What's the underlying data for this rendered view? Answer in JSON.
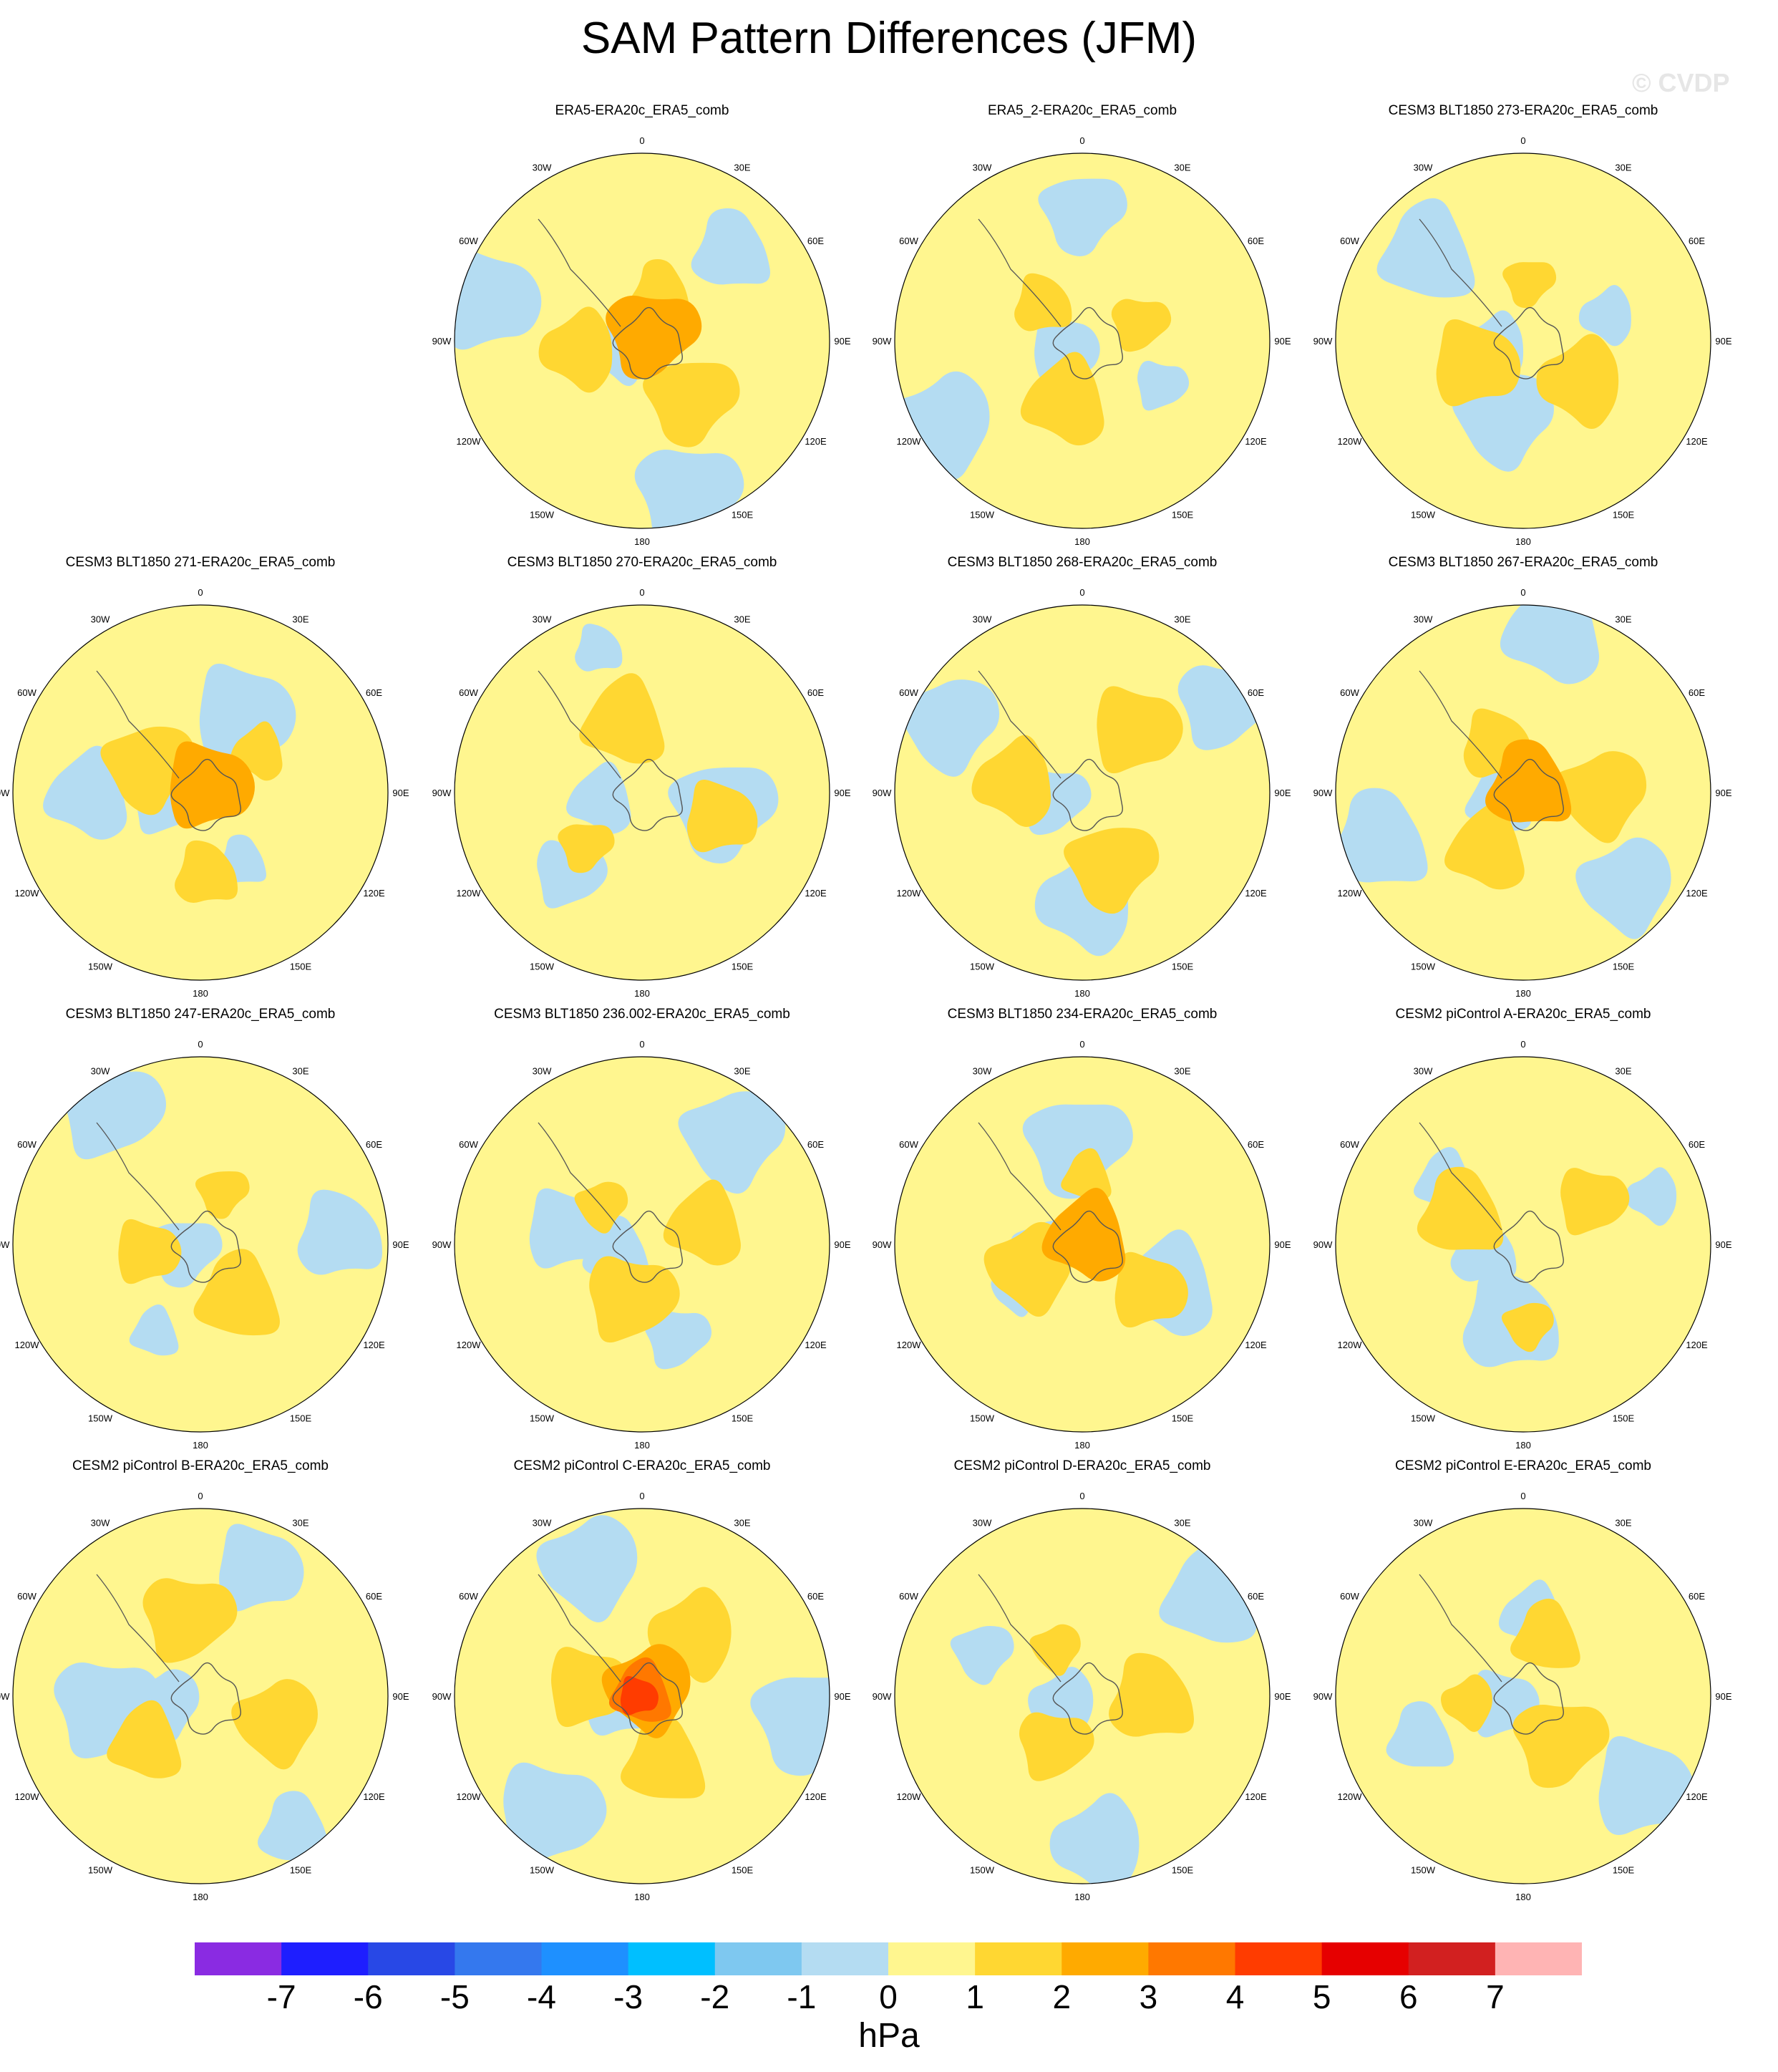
{
  "title": "SAM Pattern Differences (JFM)",
  "watermark": "© CVDP",
  "chart_data": {
    "type": "heatmap",
    "projection": "south-polar-stereographic",
    "panels": [
      {
        "title": "ERA5-ERA20c_ERA5_comb",
        "row": 0,
        "col": 1
      },
      {
        "title": "ERA5_2-ERA20c_ERA5_comb",
        "row": 0,
        "col": 2
      },
      {
        "title": "CESM3 BLT1850 273-ERA20c_ERA5_comb",
        "row": 0,
        "col": 3
      },
      {
        "title": "CESM3 BLT1850 271-ERA20c_ERA5_comb",
        "row": 1,
        "col": 0
      },
      {
        "title": "CESM3 BLT1850 270-ERA20c_ERA5_comb",
        "row": 1,
        "col": 1
      },
      {
        "title": "CESM3 BLT1850 268-ERA20c_ERA5_comb",
        "row": 1,
        "col": 2
      },
      {
        "title": "CESM3 BLT1850 267-ERA20c_ERA5_comb",
        "row": 1,
        "col": 3
      },
      {
        "title": "CESM3 BLT1850 247-ERA20c_ERA5_comb",
        "row": 2,
        "col": 0
      },
      {
        "title": "CESM3 BLT1850 236.002-ERA20c_ERA5_comb",
        "row": 2,
        "col": 1
      },
      {
        "title": "CESM3 BLT1850 234-ERA20c_ERA5_comb",
        "row": 2,
        "col": 2
      },
      {
        "title": "CESM2 piControl A-ERA20c_ERA5_comb",
        "row": 2,
        "col": 3
      },
      {
        "title": "CESM2 piControl B-ERA20c_ERA5_comb",
        "row": 3,
        "col": 0
      },
      {
        "title": "CESM2 piControl C-ERA20c_ERA5_comb",
        "row": 3,
        "col": 1
      },
      {
        "title": "CESM2 piControl D-ERA20c_ERA5_comb",
        "row": 3,
        "col": 2
      },
      {
        "title": "CESM2 piControl E-ERA20c_ERA5_comb",
        "row": 3,
        "col": 3
      }
    ],
    "longitude_labels": [
      "0",
      "30E",
      "60E",
      "90E",
      "120E",
      "150E",
      "180",
      "150W",
      "120W",
      "90W",
      "60W",
      "30W"
    ],
    "colorbar": {
      "unit": "hPa",
      "ticks": [
        "-7",
        "-6",
        "-5",
        "-4",
        "-3",
        "-2",
        "-1",
        "0",
        "1",
        "2",
        "3",
        "4",
        "5",
        "6",
        "7"
      ],
      "colors": [
        "#8a2be2",
        "#1e1eff",
        "#2848e6",
        "#3478ee",
        "#1e90ff",
        "#00bfff",
        "#7ec8f0",
        "#b4dcf2",
        "#fff68f",
        "#ffd732",
        "#ffaa00",
        "#ff7800",
        "#ff3c00",
        "#e60000",
        "#d22020",
        "#ffb4b4"
      ]
    }
  }
}
